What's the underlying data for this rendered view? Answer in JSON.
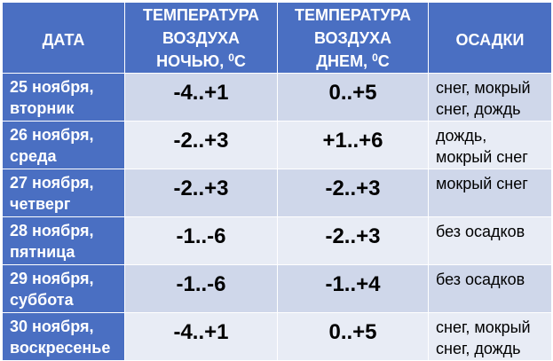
{
  "header": {
    "date": "ДАТА",
    "night_line1": "ТЕМПЕРАТУРА",
    "night_line2": "ВОЗДУХА",
    "night_line3": "НОЧЬЮ, ",
    "night_deg": "0",
    "night_unit": "C",
    "day_line1": "ТЕМПЕРАТУРА",
    "day_line2": "ВОЗДУХА",
    "day_line3": "ДНЕМ, ",
    "day_deg": "0",
    "day_unit": "C",
    "precip": "ОСАДКИ"
  },
  "rows": [
    {
      "date": "25 ноября,",
      "weekday": "вторник",
      "night": "-4..+1",
      "day": "0..+5",
      "precip1": "снег, мокрый",
      "precip2": "снег, дождь"
    },
    {
      "date": "26 ноября,",
      "weekday": "среда",
      "night": "-2..+3",
      "day": "+1..+6",
      "precip1": "дождь,",
      "precip2": "мокрый снег"
    },
    {
      "date": "27 ноября,",
      "weekday": "четверг",
      "night": "-2..+3",
      "day": "-2..+3",
      "precip1": "мокрый снег",
      "precip2": ""
    },
    {
      "date": "28 ноября,",
      "weekday": "пятница",
      "night": "-1..-6",
      "day": "-2..+3",
      "precip1": "без осадков",
      "precip2": ""
    },
    {
      "date": "29 ноября,",
      "weekday": "суббота",
      "night": "-1..-6",
      "day": "-1..+4",
      "precip1": "без осадков",
      "precip2": ""
    },
    {
      "date": "30 ноября,",
      "weekday": "воскресенье",
      "night": "-4..+1",
      "day": "0..+5",
      "precip1": "снег, мокрый",
      "precip2": "снег, дождь"
    }
  ],
  "colors": {
    "header_bg": "#4a6fc2",
    "row_odd_bg": "#cfd7ea",
    "row_even_bg": "#e8ecf5"
  }
}
